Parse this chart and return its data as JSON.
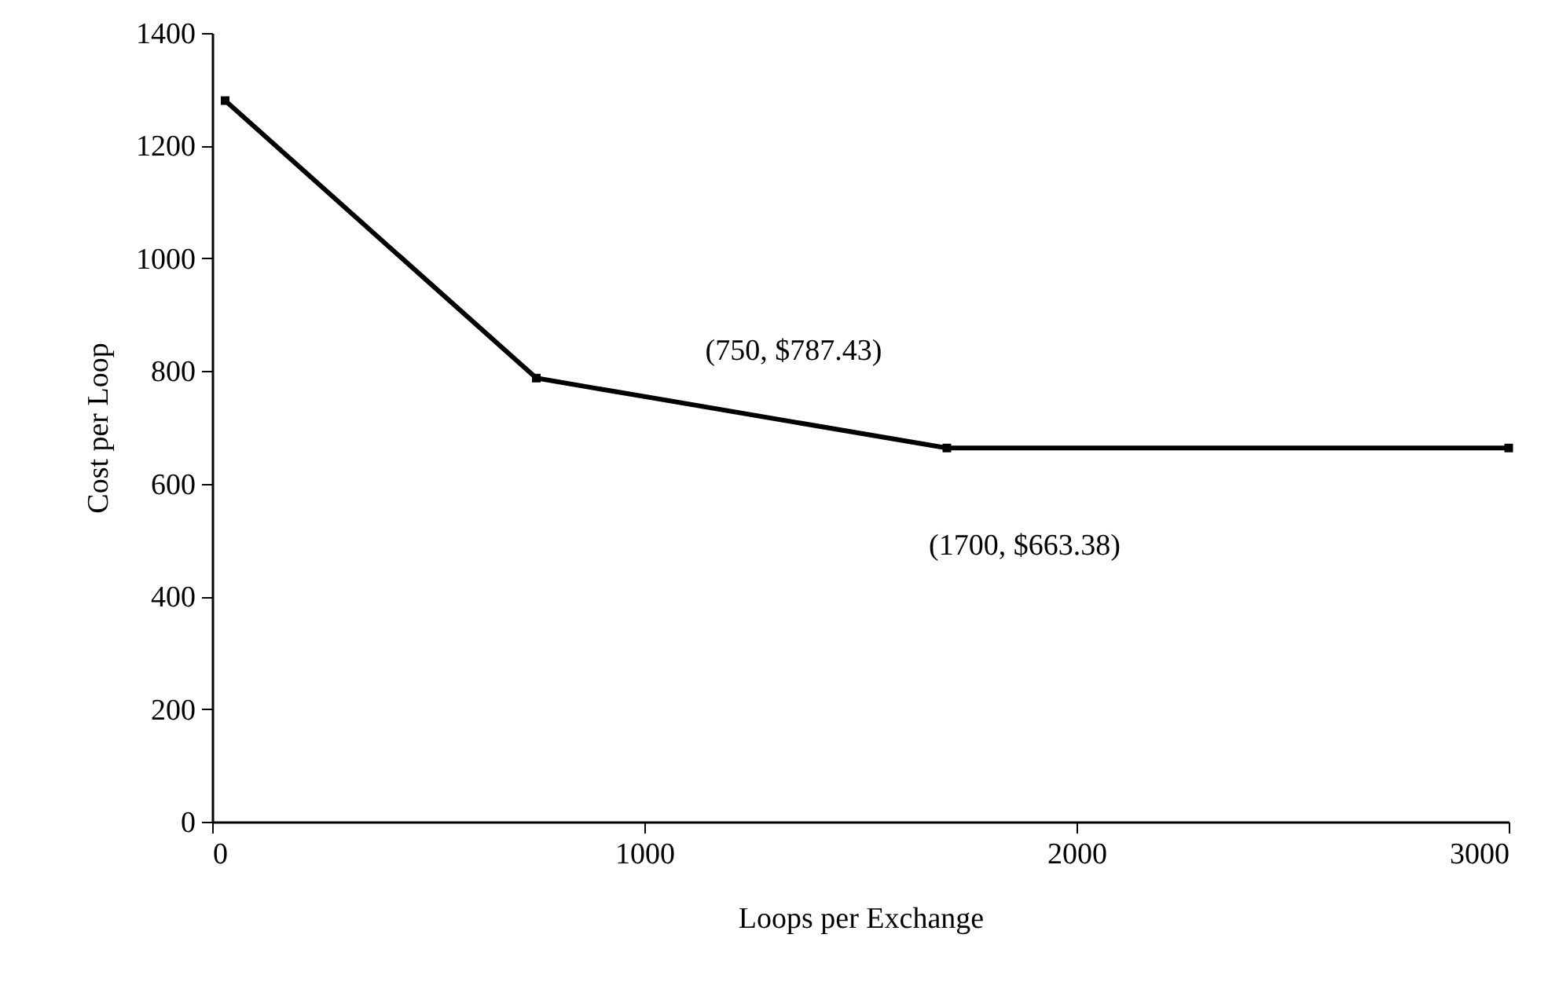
{
  "chart_data": {
    "type": "line",
    "xlabel": "Loops per Exchange",
    "ylabel": "Cost per Loop",
    "x": [
      30,
      750,
      1700,
      3000
    ],
    "series": [
      {
        "color": "#000000",
        "values": [
          1280,
          787.43,
          663.38,
          663.38
        ]
      }
    ],
    "xlim": [
      0,
      3000
    ],
    "xticks": [
      0,
      1000,
      2000,
      3000
    ],
    "ylim": [
      0,
      1400
    ],
    "yticks": [
      0,
      200,
      400,
      600,
      800,
      1000,
      1200,
      1400
    ],
    "grid": false,
    "marker": "square",
    "line_style": "solid",
    "annotations": [
      "(750, $787.43)",
      "(1700, $663.38)"
    ]
  }
}
